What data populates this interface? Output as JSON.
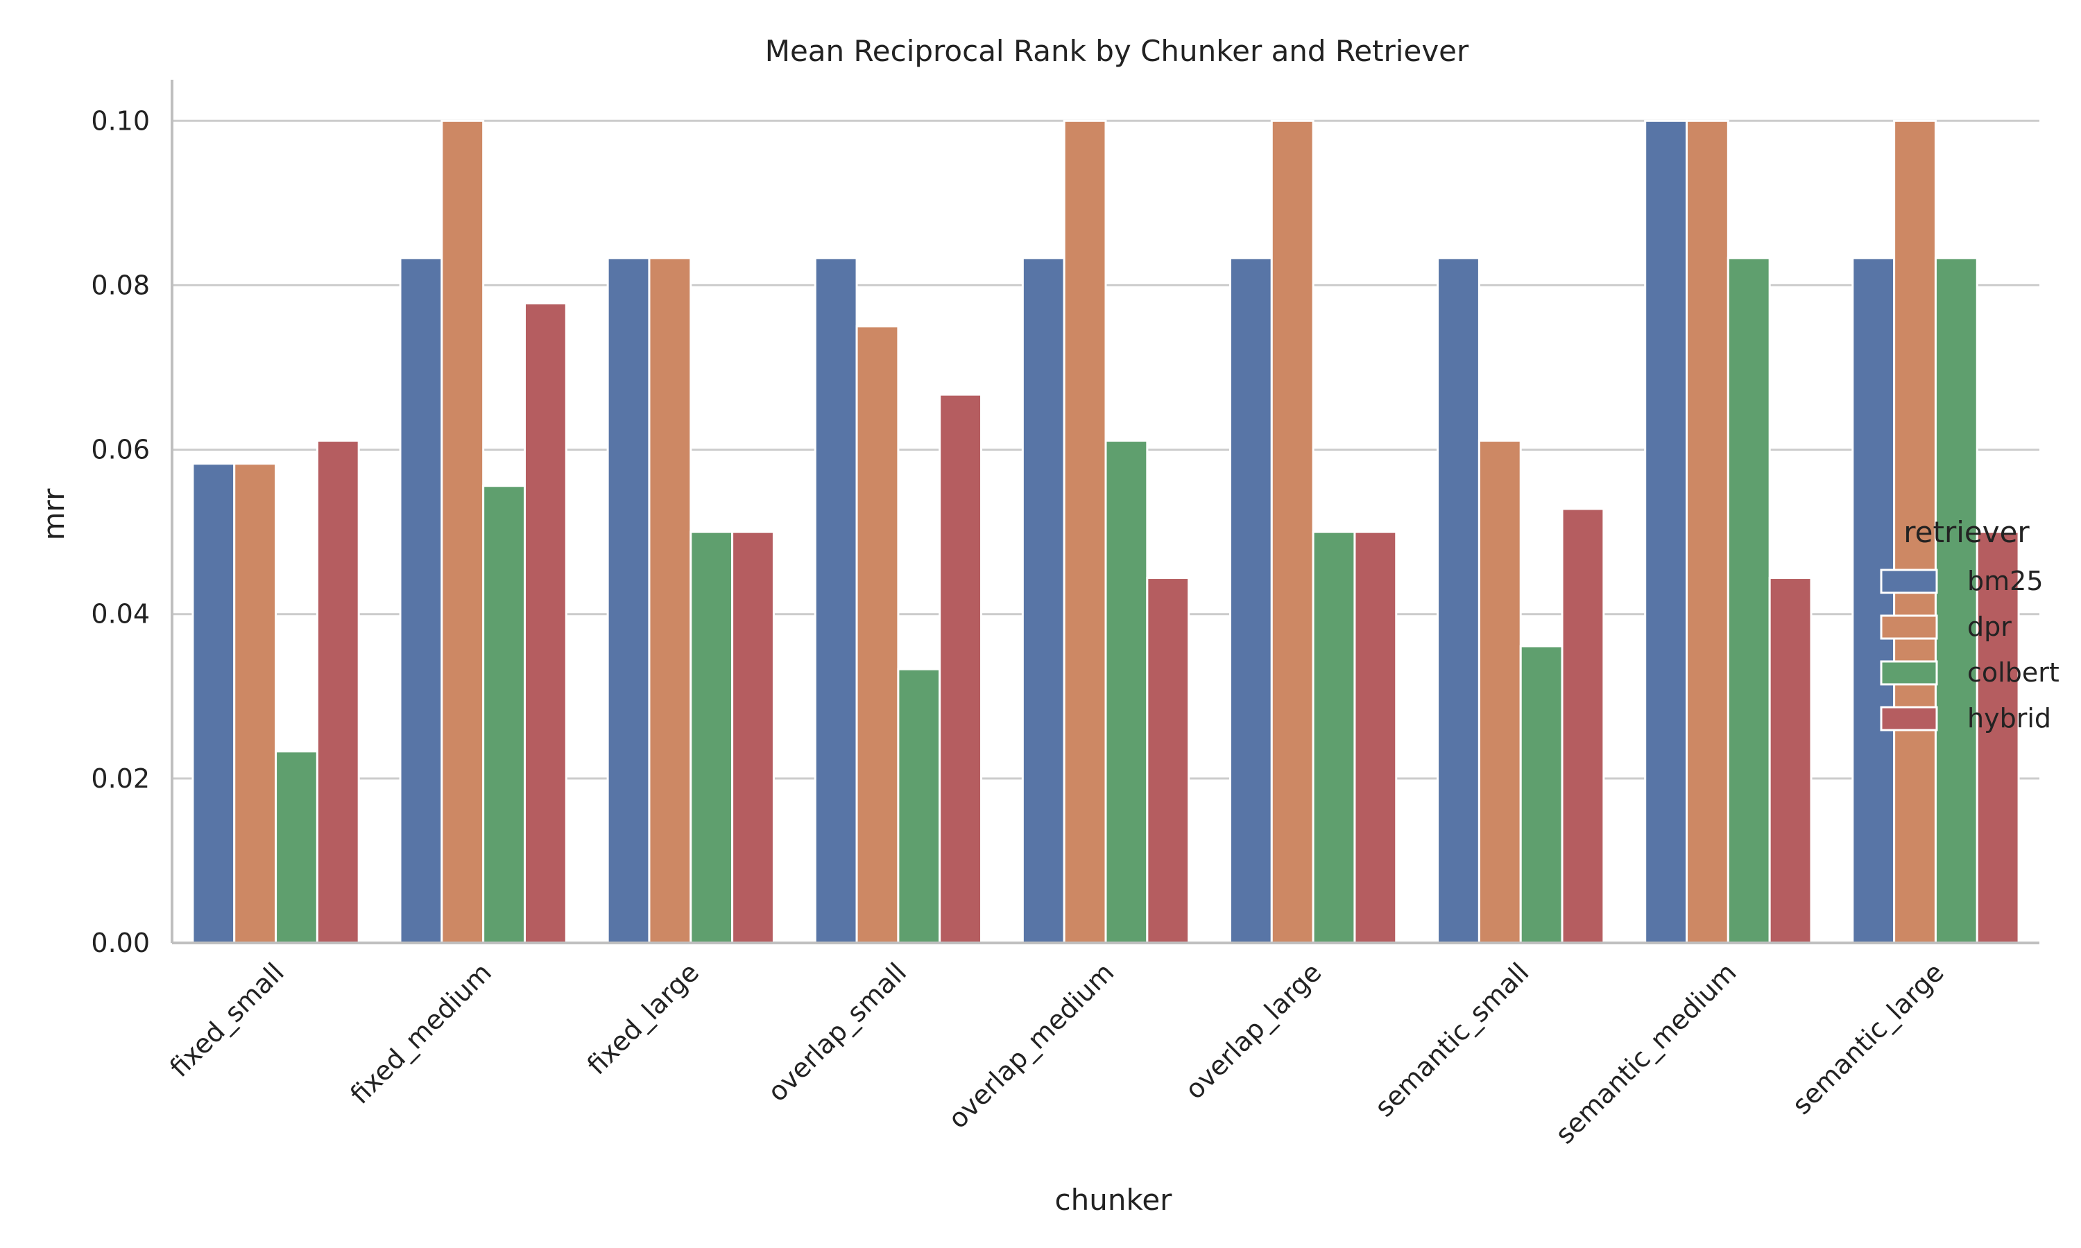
{
  "chart_data": {
    "type": "bar",
    "title": "Mean Reciprocal Rank by Chunker and Retriever",
    "xlabel": "chunker",
    "ylabel": "mrr",
    "ylim": [
      0,
      0.105
    ],
    "yticks": [
      "0.00",
      "0.02",
      "0.04",
      "0.06",
      "0.08",
      "0.10"
    ],
    "grid": "horizontal",
    "legend_title": "retriever",
    "legend_position": "right",
    "categories": [
      "fixed_small",
      "fixed_medium",
      "fixed_large",
      "overlap_small",
      "overlap_medium",
      "overlap_large",
      "semantic_small",
      "semantic_medium",
      "semantic_large"
    ],
    "series": [
      {
        "name": "bm25",
        "color": "#5875a6",
        "values": [
          0.0583,
          0.0833,
          0.0833,
          0.0833,
          0.0833,
          0.0833,
          0.0833,
          0.1,
          0.0833
        ]
      },
      {
        "name": "dpr",
        "color": "#cd8864",
        "values": [
          0.0583,
          0.1,
          0.0833,
          0.075,
          0.1,
          0.1,
          0.0611,
          0.1,
          0.1
        ]
      },
      {
        "name": "colbert",
        "color": "#5f9f6e",
        "values": [
          0.0233,
          0.0556,
          0.05,
          0.0333,
          0.0611,
          0.05,
          0.0361,
          0.0833,
          0.0833
        ]
      },
      {
        "name": "hybrid",
        "color": "#b55d60",
        "values": [
          0.0611,
          0.0778,
          0.05,
          0.0667,
          0.0444,
          0.05,
          0.0528,
          0.0444,
          0.05
        ]
      }
    ]
  }
}
